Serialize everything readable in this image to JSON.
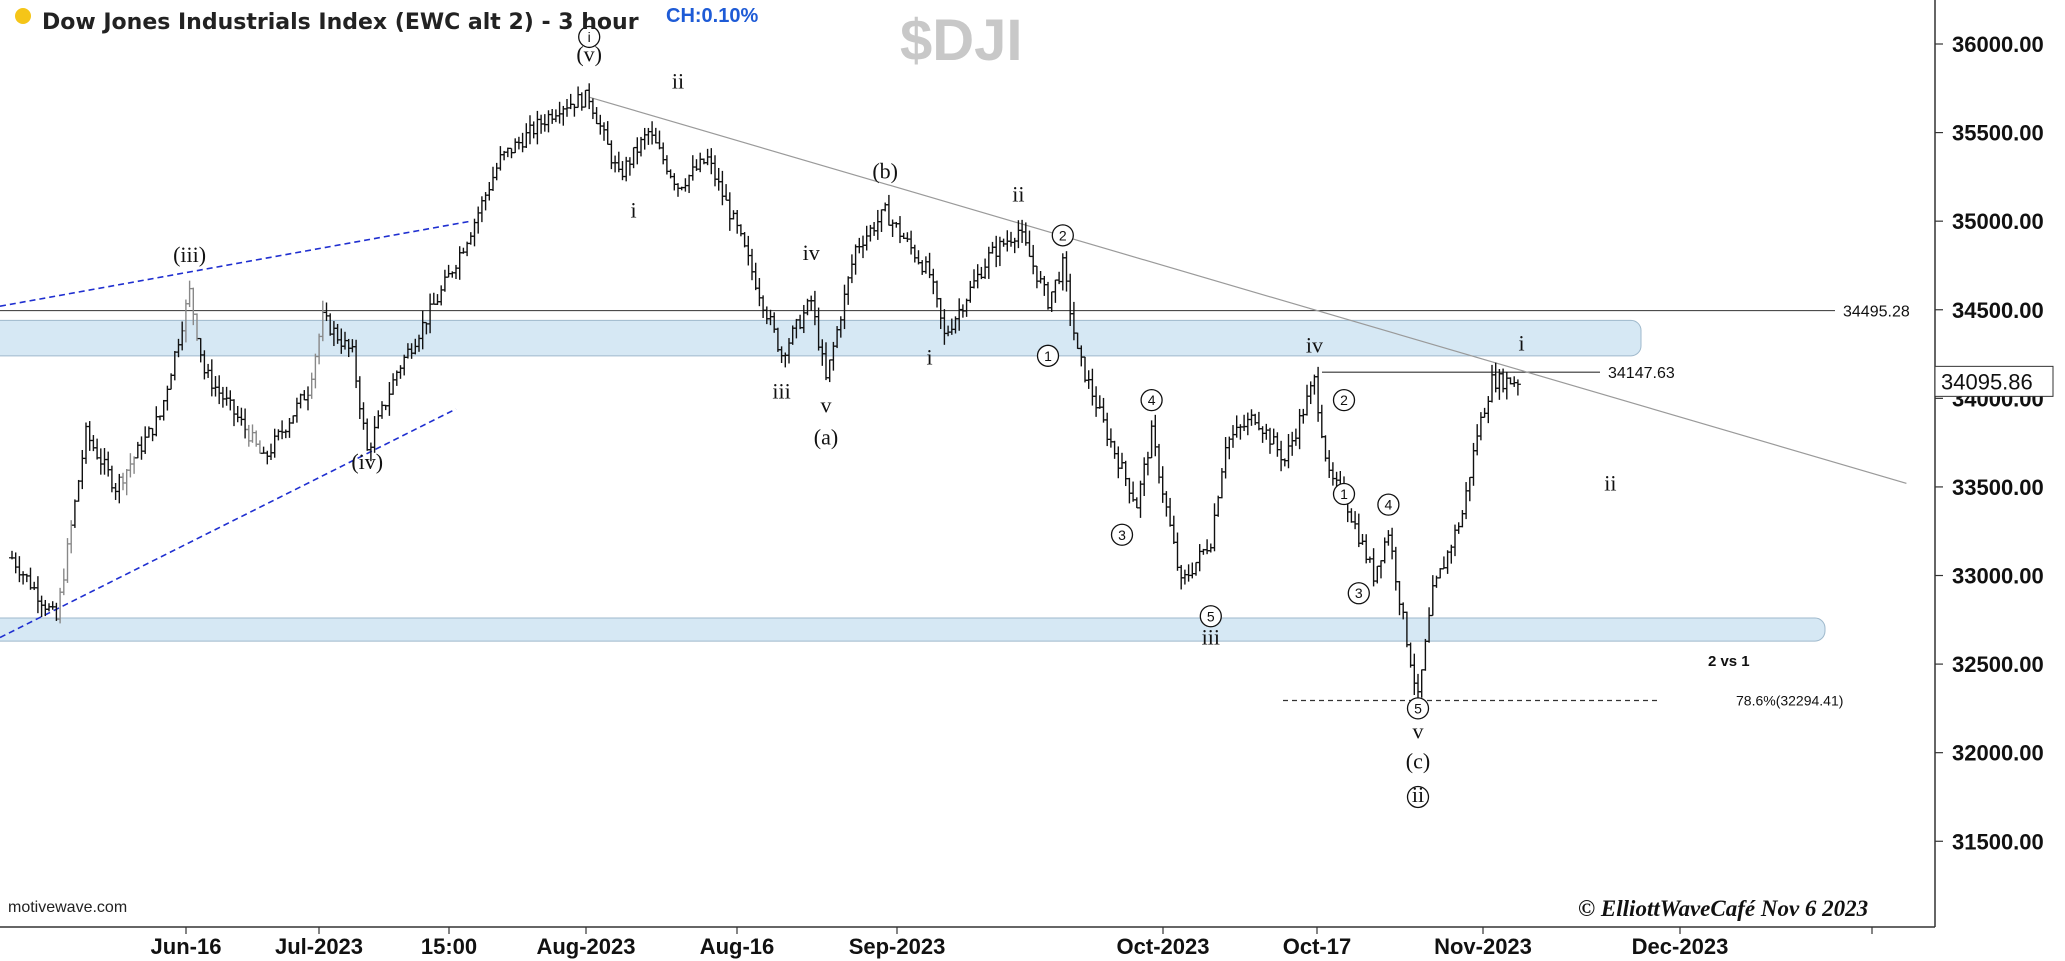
{
  "header": {
    "title": "Dow Jones Industrials Index (EWC alt 2) - 3 hour",
    "change": "CH:0.10%",
    "symbol": "$DJI",
    "status_dot_color": "#f5c518"
  },
  "footer": {
    "source": "motivewave.com",
    "copyright": "© ElliottWaveCafé Nov 6 2023"
  },
  "chart_data": {
    "type": "bar",
    "title": "Dow Jones Industrials Index (EWC alt 2) - 3 hour",
    "symbol": "$DJI",
    "ylim": [
      31050,
      36300
    ],
    "y_ticks": [
      36000,
      35500,
      35000,
      34500,
      34000,
      33500,
      33000,
      32500,
      32000,
      31500
    ],
    "y_tick_labels": [
      "36000.00",
      "35500.00",
      "35000.00",
      "34500.00",
      "34000.00",
      "33500.00",
      "33000.00",
      "32500.00",
      "32000.00",
      "31500.00"
    ],
    "x_ticks": [
      {
        "label": "Jun-16",
        "bar": 12
      },
      {
        "label": "Jul-2023",
        "bar": 21
      },
      {
        "label": "15:00",
        "bar": 30
      },
      {
        "label": "Aug-2023",
        "bar": 39
      },
      {
        "label": "Aug-16",
        "bar": 49
      },
      {
        "label": "Sep-2023",
        "bar": 59
      },
      {
        "label": "Oct-2023",
        "bar": 77
      },
      {
        "label": "Oct-17",
        "bar": 87
      },
      {
        "label": "Nov-2023",
        "bar": 96
      },
      {
        "label": "Dec-2023",
        "bar": 111
      }
    ],
    "bar_count": 102,
    "path": [
      [
        0,
        33100
      ],
      [
        3,
        32750
      ],
      [
        5,
        33800
      ],
      [
        7,
        33500
      ],
      [
        10,
        33900
      ],
      [
        12,
        34600
      ],
      [
        13,
        34150
      ],
      [
        16,
        33800
      ],
      [
        17,
        33650
      ],
      [
        20,
        34050
      ],
      [
        21,
        34450
      ],
      [
        23,
        34250
      ],
      [
        24,
        33700
      ],
      [
        26,
        34150
      ],
      [
        29,
        34600
      ],
      [
        31,
        34950
      ],
      [
        33,
        35350
      ],
      [
        37,
        35650
      ],
      [
        39,
        35700
      ],
      [
        41,
        35250
      ],
      [
        43,
        35500
      ],
      [
        45,
        35200
      ],
      [
        47,
        35350
      ],
      [
        49,
        34950
      ],
      [
        52,
        34250
      ],
      [
        54,
        34550
      ],
      [
        55,
        34100
      ],
      [
        57,
        34850
      ],
      [
        59,
        35050
      ],
      [
        62,
        34700
      ],
      [
        63,
        34350
      ],
      [
        66,
        34800
      ],
      [
        68,
        34950
      ],
      [
        70,
        34550
      ],
      [
        71,
        34750
      ],
      [
        72,
        34250
      ],
      [
        74,
        33800
      ],
      [
        76,
        33400
      ],
      [
        77,
        33800
      ],
      [
        79,
        32950
      ],
      [
        81,
        33200
      ],
      [
        82,
        33750
      ],
      [
        84,
        33900
      ],
      [
        86,
        33650
      ],
      [
        88,
        34100
      ],
      [
        89,
        33550
      ],
      [
        90,
        33450
      ],
      [
        92,
        33000
      ],
      [
        93,
        33250
      ],
      [
        94,
        32750
      ],
      [
        95,
        32300
      ],
      [
        96,
        32900
      ],
      [
        98,
        33350
      ],
      [
        99,
        33800
      ],
      [
        100,
        34100
      ],
      [
        101,
        34100
      ]
    ],
    "last_price": 34095.86,
    "levels": [
      {
        "name": "resistance-34495",
        "value": 34495.28,
        "label": "34495.28"
      },
      {
        "name": "resistance-34147",
        "value": 34147.63,
        "label": "34147.63"
      },
      {
        "name": "fib-786",
        "value": 32294.41,
        "label": "78.6%(32294.41)"
      }
    ],
    "zones": [
      {
        "name": "upper-zone",
        "low": 34240,
        "high": 34440
      },
      {
        "name": "lower-zone",
        "low": 32630,
        "high": 32760
      }
    ],
    "trendlines": [
      {
        "name": "main-downtrend",
        "from": [
          39,
          35700
        ],
        "to": [
          128,
          33520
        ]
      },
      {
        "name": "upper-channel",
        "from": [
          0,
          34520
        ],
        "to": [
          31,
          35000
        ]
      },
      {
        "name": "lower-channel",
        "from": [
          0,
          32650
        ],
        "to": [
          30,
          33940
        ]
      }
    ],
    "wave_labels": [
      {
        "text": "(v)",
        "bar": 39,
        "price": 35900
      },
      {
        "text": "(iii)",
        "bar": 12,
        "price": 34770
      },
      {
        "text": "(iv)",
        "bar": 24,
        "price": 33600
      },
      {
        "text": "ii",
        "bar": 45,
        "price": 35750
      },
      {
        "text": "i",
        "bar": 42,
        "price": 35020
      },
      {
        "text": "iv",
        "bar": 54,
        "price": 34780
      },
      {
        "text": "iii",
        "bar": 52,
        "price": 34000
      },
      {
        "text": "v",
        "bar": 55,
        "price": 33920
      },
      {
        "text": "(a)",
        "bar": 55,
        "price": 33740
      },
      {
        "text": "(b)",
        "bar": 59,
        "price": 35240
      },
      {
        "text": "i",
        "bar": 62,
        "price": 34190
      },
      {
        "text": "ii",
        "bar": 68,
        "price": 35110
      },
      {
        "text": "iii",
        "bar": 81,
        "price": 32610
      },
      {
        "text": "iv",
        "bar": 88,
        "price": 34260
      },
      {
        "text": "v",
        "bar": 95,
        "price": 32080
      },
      {
        "text": "(c)",
        "bar": 95,
        "price": 31910
      },
      {
        "text": "i",
        "bar": 102,
        "price": 34270
      },
      {
        "text": "ii",
        "bar": 108,
        "price": 33480
      },
      {
        "text": "2 vs 1",
        "bar": 116,
        "price": 32490
      }
    ],
    "circled_labels": [
      {
        "text": "i",
        "bar": 39,
        "price": 36040
      },
      {
        "text": "2",
        "bar": 71,
        "price": 34920
      },
      {
        "text": "1",
        "bar": 70,
        "price": 34240
      },
      {
        "text": "4",
        "bar": 77,
        "price": 33990
      },
      {
        "text": "3",
        "bar": 75,
        "price": 33230
      },
      {
        "text": "5",
        "bar": 81,
        "price": 32770
      },
      {
        "text": "2",
        "bar": 90,
        "price": 33990
      },
      {
        "text": "1",
        "bar": 90,
        "price": 33460
      },
      {
        "text": "4",
        "bar": 93,
        "price": 33400
      },
      {
        "text": "3",
        "bar": 91,
        "price": 32900
      },
      {
        "text": "5",
        "bar": 95,
        "price": 32250
      },
      {
        "text": "ii",
        "bar": 95,
        "price": 31750
      }
    ]
  }
}
